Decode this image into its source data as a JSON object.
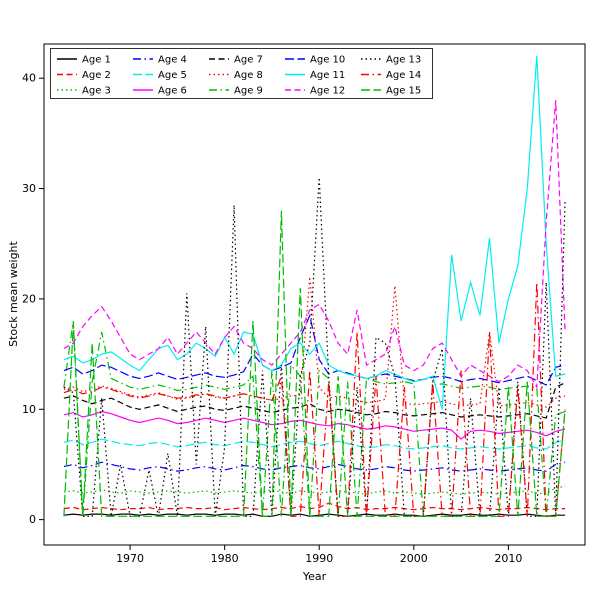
{
  "figure": {
    "xlabel": "Year",
    "ylabel": "Stock mean weight"
  },
  "chart_data": {
    "type": "line",
    "title": "",
    "xlabel": "Year",
    "ylabel": "Stock mean weight",
    "xticks": [
      1970,
      1980,
      1990,
      2000,
      2010
    ],
    "yticks": [
      0,
      10,
      20,
      30,
      40
    ],
    "xlim": [
      1960.9,
      2018.1
    ],
    "ylim": [
      -2.3,
      43.1
    ],
    "grid": false,
    "legend": {
      "position": "top-left",
      "columns": 5,
      "rows": 3,
      "frame": true,
      "order": "column-major"
    },
    "x": [
      1963,
      1964,
      1965,
      1966,
      1967,
      1968,
      1969,
      1970,
      1971,
      1972,
      1973,
      1974,
      1975,
      1976,
      1977,
      1978,
      1979,
      1980,
      1981,
      1982,
      1983,
      1984,
      1985,
      1986,
      1987,
      1988,
      1989,
      1990,
      1991,
      1992,
      1993,
      1994,
      1995,
      1996,
      1997,
      1998,
      1999,
      2000,
      2001,
      2002,
      2003,
      2004,
      2005,
      2006,
      2007,
      2008,
      2009,
      2010,
      2011,
      2012,
      2013,
      2014,
      2015,
      2016
    ],
    "series": [
      {
        "name": "Age 1",
        "color": "#000000",
        "linestyle": "solid",
        "values": [
          0.4,
          0.5,
          0.4,
          0.5,
          0.5,
          0.4,
          0.5,
          0.5,
          0.4,
          0.5,
          0.4,
          0.5,
          0.5,
          0.4,
          0.5,
          0.5,
          0.4,
          0.5,
          0.5,
          0.4,
          0.5,
          0.3,
          0.3,
          0.5,
          0.4,
          0.5,
          0.3,
          0.4,
          0.5,
          0.4,
          0.3,
          0.4,
          0.5,
          0.4,
          0.4,
          0.5,
          0.4,
          0.4,
          0.3,
          0.4,
          0.5,
          0.4,
          0.4,
          0.5,
          0.4,
          0.4,
          0.5,
          0.4,
          0.4,
          0.5,
          0.4,
          0.3,
          0.4,
          0.4
        ]
      },
      {
        "name": "Age 2",
        "color": "#ff0000",
        "linestyle": "dashed",
        "values": [
          1.0,
          1.1,
          0.9,
          1.0,
          1.1,
          1.0,
          0.9,
          1.0,
          1.0,
          1.1,
          0.9,
          1.0,
          1.0,
          1.1,
          1.0,
          1.0,
          1.1,
          0.9,
          1.0,
          1.1,
          1.0,
          0.9,
          1.0,
          1.1,
          1.0,
          1.2,
          1.0,
          1.1,
          1.5,
          1.2,
          1.0,
          1.1,
          0.9,
          1.0,
          1.0,
          1.1,
          1.0,
          0.9,
          1.0,
          1.1,
          1.0,
          1.0,
          0.9,
          1.0,
          1.1,
          1.0,
          0.9,
          1.0,
          1.0,
          1.1,
          1.0,
          0.9,
          1.0,
          1.0
        ]
      },
      {
        "name": "Age 3",
        "color": "#00bb00",
        "linestyle": "dotted",
        "values": [
          2.5,
          2.6,
          2.4,
          2.5,
          2.7,
          2.5,
          2.4,
          2.6,
          2.5,
          2.4,
          2.5,
          2.6,
          2.5,
          2.4,
          2.5,
          2.6,
          2.4,
          2.5,
          2.6,
          2.5,
          2.4,
          2.5,
          2.7,
          2.5,
          2.4,
          2.6,
          2.5,
          2.4,
          2.5,
          2.6,
          2.5,
          2.4,
          2.3,
          2.5,
          2.6,
          2.4,
          2.5,
          2.4,
          2.3,
          2.4,
          2.5,
          2.4,
          2.3,
          2.4,
          2.5,
          2.4,
          2.3,
          2.4,
          2.5,
          2.6,
          2.4,
          2.3,
          2.9,
          3.0
        ]
      },
      {
        "name": "Age 4",
        "color": "#0000ff",
        "linestyle": "dashdot",
        "values": [
          4.8,
          5.0,
          4.7,
          4.9,
          5.2,
          5.0,
          4.8,
          4.6,
          4.5,
          4.7,
          4.8,
          4.6,
          4.4,
          4.5,
          4.7,
          4.8,
          4.6,
          4.5,
          4.7,
          4.9,
          4.8,
          4.6,
          4.5,
          4.7,
          4.8,
          4.9,
          4.7,
          4.6,
          4.8,
          5.0,
          4.8,
          4.6,
          4.5,
          4.6,
          4.8,
          4.7,
          4.5,
          4.4,
          4.5,
          4.6,
          4.7,
          4.5,
          4.4,
          4.5,
          4.6,
          4.5,
          4.4,
          4.5,
          4.6,
          4.7,
          4.5,
          4.4,
          5.0,
          5.2
        ]
      },
      {
        "name": "Age 5",
        "color": "#00eeee",
        "linestyle": "longdash",
        "values": [
          7.0,
          7.2,
          6.8,
          7.0,
          7.3,
          7.1,
          6.9,
          6.8,
          6.7,
          6.9,
          7.0,
          6.8,
          6.6,
          6.7,
          6.9,
          7.0,
          6.8,
          6.7,
          6.9,
          7.1,
          7.0,
          6.8,
          6.6,
          6.8,
          7.0,
          7.1,
          6.9,
          6.7,
          6.9,
          7.1,
          6.9,
          6.7,
          6.5,
          6.6,
          6.8,
          6.7,
          6.5,
          6.4,
          6.5,
          6.6,
          6.7,
          6.5,
          6.4,
          6.5,
          6.6,
          6.5,
          6.4,
          6.5,
          6.6,
          6.7,
          6.5,
          6.4,
          7.0,
          7.2
        ]
      },
      {
        "name": "Age 6",
        "color": "#ff00ff",
        "linestyle": "solid",
        "values": [
          9.5,
          9.7,
          9.3,
          9.5,
          9.8,
          9.6,
          9.3,
          9.0,
          8.8,
          9.0,
          9.2,
          9.0,
          8.7,
          8.8,
          9.0,
          9.2,
          9.0,
          8.8,
          9.0,
          9.2,
          9.0,
          8.8,
          8.6,
          8.7,
          8.9,
          9.0,
          8.8,
          8.6,
          8.5,
          8.7,
          8.6,
          8.4,
          8.2,
          8.3,
          8.5,
          8.4,
          8.2,
          8.0,
          8.1,
          8.2,
          8.3,
          8.1,
          7.3,
          8.0,
          8.1,
          8.0,
          7.8,
          7.9,
          8.0,
          8.1,
          7.9,
          7.6,
          8.0,
          8.2
        ]
      },
      {
        "name": "Age 7",
        "color": "#000000",
        "linestyle": "dashed",
        "values": [
          11.0,
          11.2,
          10.8,
          10.5,
          10.8,
          11.0,
          10.6,
          10.2,
          10.0,
          10.2,
          10.4,
          10.1,
          9.8,
          10.0,
          10.2,
          10.3,
          10.0,
          9.9,
          10.1,
          10.3,
          10.1,
          9.9,
          9.7,
          9.9,
          10.1,
          10.2,
          10.5,
          10.0,
          9.8,
          10.0,
          9.9,
          9.7,
          9.5,
          9.6,
          9.8,
          9.7,
          9.5,
          9.4,
          9.5,
          9.6,
          9.7,
          9.5,
          9.3,
          9.4,
          9.5,
          9.4,
          9.3,
          9.4,
          9.5,
          9.6,
          9.4,
          9.2,
          12.0,
          12.4
        ]
      },
      {
        "name": "Age 8",
        "color": "#ff0000",
        "linestyle": "dotted",
        "values": [
          11.8,
          12.0,
          11.6,
          11.8,
          12.1,
          11.9,
          11.6,
          11.3,
          11.1,
          11.3,
          11.5,
          11.2,
          10.9,
          11.0,
          11.2,
          11.4,
          11.1,
          11.0,
          11.2,
          11.4,
          11.2,
          11.0,
          10.8,
          11.0,
          11.2,
          11.3,
          22.0,
          12.0,
          11.0,
          11.2,
          11.0,
          10.8,
          10.6,
          10.7,
          10.9,
          21.2,
          10.6,
          10.4,
          10.5,
          10.6,
          10.7,
          10.5,
          10.3,
          10.4,
          10.5,
          17.0,
          10.3,
          10.4,
          10.5,
          10.6,
          10.4,
          10.2,
          11.0,
          11.2
        ]
      },
      {
        "name": "Age 9",
        "color": "#00bb00",
        "linestyle": "dashdot",
        "values": [
          12.0,
          18.0,
          0.3,
          12.5,
          17.0,
          12.8,
          12.4,
          12.0,
          11.8,
          12.0,
          12.2,
          12.0,
          11.7,
          11.8,
          12.0,
          12.2,
          12.0,
          11.8,
          12.0,
          12.2,
          13.0,
          0.3,
          13.5,
          0.3,
          14.0,
          13.0,
          0.3,
          13.5,
          12.8,
          0.3,
          12.5,
          0.3,
          12.8,
          12.5,
          12.3,
          12.4,
          12.5,
          12.3,
          0.3,
          12.2,
          12.3,
          12.1,
          11.9,
          12.0,
          12.1,
          12.0,
          11.8,
          11.9,
          12.0,
          12.1,
          11.9,
          0.3,
          9.5,
          9.8
        ]
      },
      {
        "name": "Age 10",
        "color": "#0000ff",
        "linestyle": "longdash",
        "values": [
          13.5,
          13.8,
          13.2,
          13.5,
          14.0,
          13.8,
          13.4,
          13.0,
          12.8,
          13.0,
          13.3,
          13.0,
          12.7,
          12.9,
          13.1,
          13.3,
          13.0,
          12.9,
          13.1,
          13.4,
          15.0,
          14.0,
          13.5,
          13.8,
          14.2,
          16.5,
          18.5,
          14.5,
          13.2,
          13.5,
          13.3,
          13.0,
          12.8,
          13.0,
          13.2,
          13.0,
          12.8,
          12.6,
          12.7,
          12.9,
          13.0,
          12.8,
          12.5,
          12.7,
          12.8,
          12.6,
          12.4,
          12.6,
          12.8,
          13.0,
          12.6,
          12.2,
          13.8,
          14.0
        ]
      },
      {
        "name": "Age 11",
        "color": "#00eeee",
        "linestyle": "solid",
        "values": [
          14.5,
          14.8,
          14.2,
          14.5,
          15.0,
          15.2,
          14.6,
          14.0,
          13.5,
          14.5,
          15.5,
          15.8,
          14.5,
          15.0,
          16.0,
          15.5,
          14.8,
          16.5,
          15.0,
          17.0,
          16.8,
          14.0,
          13.5,
          14.0,
          15.5,
          16.0,
          15.0,
          16.0,
          14.0,
          13.5,
          13.2,
          13.0,
          12.8,
          13.0,
          13.5,
          13.2,
          12.8,
          12.5,
          12.7,
          13.0,
          10.0,
          24.0,
          18.0,
          21.5,
          18.5,
          25.5,
          16.0,
          20.0,
          23.0,
          30.0,
          42.0,
          25.0,
          13.0,
          13.2
        ]
      },
      {
        "name": "Age 12",
        "color": "#ff00ff",
        "linestyle": "dashed",
        "values": [
          15.5,
          16.0,
          17.5,
          18.5,
          19.3,
          18.0,
          16.5,
          15.0,
          14.5,
          15.0,
          15.5,
          16.5,
          15.0,
          16.0,
          17.0,
          16.0,
          15.0,
          16.5,
          17.5,
          16.0,
          15.5,
          14.5,
          14.0,
          15.0,
          16.0,
          17.0,
          19.0,
          19.5,
          18.0,
          16.0,
          15.0,
          19.0,
          14.0,
          14.5,
          15.0,
          17.5,
          14.0,
          13.5,
          14.0,
          15.5,
          16.0,
          14.5,
          13.0,
          14.0,
          13.5,
          13.0,
          12.5,
          13.0,
          14.0,
          13.5,
          12.0,
          27.0,
          38.0,
          17.0
        ]
      },
      {
        "name": "Age 13",
        "color": "#000000",
        "linestyle": "dotted",
        "values": [
          12.0,
          11.5,
          0.3,
          0.3,
          11.0,
          0.3,
          5.0,
          0.3,
          0.3,
          4.5,
          0.3,
          6.0,
          0.3,
          20.5,
          5.0,
          17.5,
          0.3,
          6.5,
          28.5,
          0.3,
          0.3,
          13.5,
          0.3,
          14.0,
          0.3,
          13.0,
          16.0,
          31.0,
          13.0,
          0.3,
          0.3,
          12.0,
          0.3,
          16.5,
          16.0,
          13.0,
          0.3,
          0.3,
          0.3,
          12.5,
          15.5,
          0.3,
          0.3,
          11.0,
          0.3,
          0.3,
          12.0,
          0.3,
          12.5,
          0.3,
          0.3,
          21.5,
          0.3,
          29.0
        ]
      },
      {
        "name": "Age 14",
        "color": "#ff0000",
        "linestyle": "dashdot",
        "values": [
          11.5,
          11.8,
          11.4,
          11.6,
          12.0,
          11.8,
          11.5,
          11.2,
          11.0,
          11.2,
          11.4,
          11.2,
          11.0,
          11.1,
          11.3,
          11.4,
          11.2,
          11.0,
          11.2,
          11.4,
          11.2,
          11.0,
          10.8,
          13.0,
          0.3,
          0.3,
          13.5,
          0.3,
          12.5,
          0.3,
          0.3,
          17.0,
          0.3,
          13.0,
          0.3,
          0.3,
          12.0,
          0.3,
          0.3,
          12.5,
          0.3,
          0.3,
          13.5,
          0.3,
          0.3,
          17.0,
          0.3,
          0.3,
          12.0,
          0.3,
          21.5,
          0.3,
          0.3,
          10.0
        ]
      },
      {
        "name": "Age 15",
        "color": "#00bb00",
        "linestyle": "longdash",
        "values": [
          0.3,
          17.8,
          0.3,
          16.0,
          0.3,
          0.3,
          0.3,
          0.3,
          0.3,
          0.3,
          0.3,
          0.3,
          0.3,
          0.3,
          0.3,
          0.3,
          0.3,
          0.3,
          0.3,
          0.3,
          18.0,
          0.3,
          0.3,
          28.0,
          0.3,
          21.0,
          0.3,
          0.3,
          0.3,
          13.0,
          0.3,
          0.3,
          0.3,
          0.3,
          0.3,
          0.3,
          0.3,
          0.3,
          0.3,
          0.3,
          0.3,
          0.3,
          0.3,
          0.3,
          0.3,
          0.3,
          0.3,
          12.0,
          0.3,
          12.5,
          0.3,
          0.3,
          0.3,
          10.0
        ]
      }
    ]
  }
}
